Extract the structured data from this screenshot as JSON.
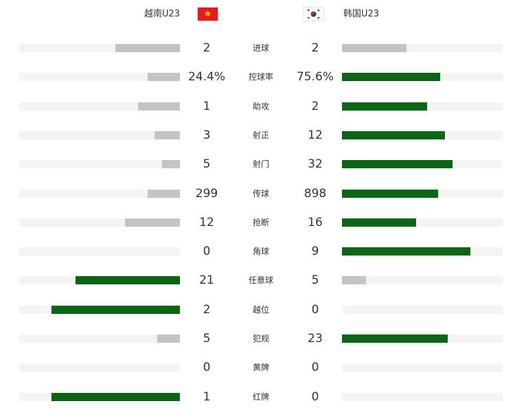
{
  "home": {
    "name": "越南U23",
    "flag": "vietnam-flag"
  },
  "away": {
    "name": "韩国U23",
    "flag": "south-korea-flag"
  },
  "colors": {
    "winner": "#0a6614",
    "other": "#c4c4c4",
    "track": "#f4f4f4"
  },
  "stats": [
    {
      "label": "进球",
      "home": "2",
      "away": "2",
      "home_fill": 0.4,
      "away_fill": 0.4,
      "leader": "none"
    },
    {
      "label": "控球率",
      "home": "24.4%",
      "away": "75.6%",
      "home_fill": 0.2,
      "away_fill": 0.61,
      "leader": "away"
    },
    {
      "label": "助攻",
      "home": "1",
      "away": "2",
      "home_fill": 0.26,
      "away_fill": 0.53,
      "leader": "away"
    },
    {
      "label": "射正",
      "home": "3",
      "away": "12",
      "home_fill": 0.16,
      "away_fill": 0.64,
      "leader": "away"
    },
    {
      "label": "射门",
      "home": "5",
      "away": "32",
      "home_fill": 0.11,
      "away_fill": 0.69,
      "leader": "away"
    },
    {
      "label": "传球",
      "home": "299",
      "away": "898",
      "home_fill": 0.2,
      "away_fill": 0.6,
      "leader": "away"
    },
    {
      "label": "抢断",
      "home": "12",
      "away": "16",
      "home_fill": 0.34,
      "away_fill": 0.46,
      "leader": "away"
    },
    {
      "label": "角球",
      "home": "0",
      "away": "9",
      "home_fill": 0,
      "away_fill": 0.8,
      "leader": "away"
    },
    {
      "label": "任意球",
      "home": "21",
      "away": "5",
      "home_fill": 0.65,
      "away_fill": 0.15,
      "leader": "home"
    },
    {
      "label": "越位",
      "home": "2",
      "away": "0",
      "home_fill": 0.8,
      "away_fill": 0,
      "leader": "home"
    },
    {
      "label": "犯规",
      "home": "5",
      "away": "23",
      "home_fill": 0.14,
      "away_fill": 0.66,
      "leader": "away"
    },
    {
      "label": "黄牌",
      "home": "0",
      "away": "0",
      "home_fill": 0,
      "away_fill": 0,
      "leader": "none"
    },
    {
      "label": "红牌",
      "home": "1",
      "away": "0",
      "home_fill": 0.8,
      "away_fill": 0,
      "leader": "home"
    }
  ]
}
